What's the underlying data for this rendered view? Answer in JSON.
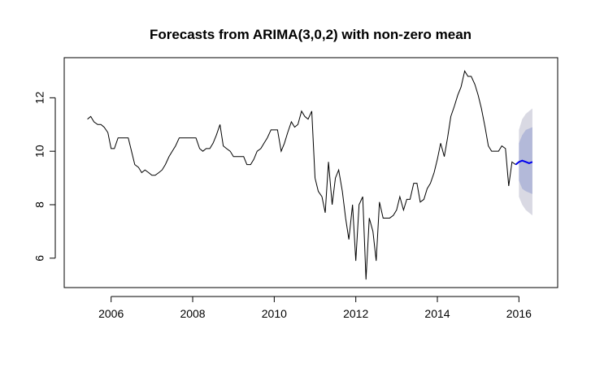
{
  "chart_data": {
    "type": "line",
    "title": "Forecasts from ARIMA(3,0,2) with non-zero mean",
    "xlabel": "",
    "ylabel": "",
    "xlim": [
      2004.85,
      2016.95
    ],
    "ylim": [
      4.9,
      13.5
    ],
    "x_ticks": [
      2006,
      2008,
      2010,
      2012,
      2014,
      2016
    ],
    "x_tick_labels": [
      "2006",
      "2008",
      "2010",
      "2012",
      "2014",
      "2016"
    ],
    "y_ticks": [
      6,
      8,
      10,
      12
    ],
    "y_tick_labels": [
      "6",
      "8",
      "10",
      "12"
    ],
    "grid": false,
    "legend": "none",
    "colors": {
      "series": "#000000",
      "forecast": "#0000ee",
      "band80": "#b3b9d9",
      "band95": "#d9d9e3"
    },
    "series": [
      {
        "role": "observed",
        "x": [
          2005.42,
          2005.5,
          2005.58,
          2005.67,
          2005.75,
          2005.83,
          2005.92,
          2006.0,
          2006.08,
          2006.17,
          2006.25,
          2006.33,
          2006.42,
          2006.5,
          2006.58,
          2006.67,
          2006.75,
          2006.83,
          2006.92,
          2007.0,
          2007.08,
          2007.17,
          2007.25,
          2007.33,
          2007.42,
          2007.5,
          2007.58,
          2007.67,
          2007.75,
          2007.83,
          2007.92,
          2008.0,
          2008.08,
          2008.17,
          2008.25,
          2008.33,
          2008.42,
          2008.5,
          2008.58,
          2008.67,
          2008.75,
          2008.83,
          2008.92,
          2009.0,
          2009.08,
          2009.17,
          2009.25,
          2009.33,
          2009.42,
          2009.5,
          2009.58,
          2009.67,
          2009.75,
          2009.83,
          2009.92,
          2010.0,
          2010.08,
          2010.17,
          2010.25,
          2010.33,
          2010.42,
          2010.5,
          2010.58,
          2010.67,
          2010.75,
          2010.83,
          2010.92,
          2011.0,
          2011.08,
          2011.17,
          2011.25,
          2011.33,
          2011.42,
          2011.5,
          2011.58,
          2011.67,
          2011.75,
          2011.83,
          2011.92,
          2012.0,
          2012.08,
          2012.17,
          2012.25,
          2012.33,
          2012.42,
          2012.5,
          2012.58,
          2012.67,
          2012.75,
          2012.83,
          2012.92,
          2013.0,
          2013.08,
          2013.17,
          2013.25,
          2013.33,
          2013.42,
          2013.5,
          2013.58,
          2013.67,
          2013.75,
          2013.83,
          2013.92,
          2014.0,
          2014.08,
          2014.17,
          2014.25,
          2014.33,
          2014.42,
          2014.5,
          2014.58,
          2014.67,
          2014.75,
          2014.83,
          2014.92,
          2015.0,
          2015.08,
          2015.17,
          2015.25,
          2015.33,
          2015.42,
          2015.5,
          2015.58,
          2015.67,
          2015.75,
          2015.83,
          2015.92
        ],
        "y": [
          11.2,
          11.3,
          11.1,
          11.0,
          11.0,
          10.9,
          10.7,
          10.1,
          10.1,
          10.5,
          10.5,
          10.5,
          10.5,
          10.0,
          9.5,
          9.4,
          9.2,
          9.3,
          9.2,
          9.1,
          9.1,
          9.2,
          9.3,
          9.5,
          9.8,
          10.0,
          10.2,
          10.5,
          10.5,
          10.5,
          10.5,
          10.5,
          10.5,
          10.1,
          10.0,
          10.1,
          10.1,
          10.3,
          10.6,
          11.0,
          10.2,
          10.1,
          10.0,
          9.8,
          9.8,
          9.8,
          9.8,
          9.5,
          9.5,
          9.7,
          10.0,
          10.1,
          10.3,
          10.5,
          10.8,
          10.8,
          10.8,
          10.0,
          10.3,
          10.7,
          11.1,
          10.9,
          11.0,
          11.5,
          11.3,
          11.2,
          11.5,
          9.0,
          8.5,
          8.3,
          7.7,
          9.6,
          8.0,
          9.0,
          9.3,
          8.5,
          7.5,
          6.7,
          8.0,
          5.9,
          8.0,
          8.3,
          5.2,
          7.5,
          7.0,
          5.9,
          8.1,
          7.5,
          7.5,
          7.5,
          7.6,
          7.8,
          8.3,
          7.8,
          8.2,
          8.2,
          8.8,
          8.8,
          8.1,
          8.2,
          8.6,
          8.8,
          9.2,
          9.7,
          10.3,
          9.8,
          10.5,
          11.3,
          11.7,
          12.1,
          12.4,
          13.0,
          12.8,
          12.8,
          12.5,
          12.1,
          11.6,
          10.9,
          10.2,
          10.0,
          10.0,
          10.0,
          10.2,
          10.1,
          8.7,
          9.6,
          9.5
        ]
      },
      {
        "role": "forecast",
        "x": [
          2015.92,
          2016.0,
          2016.08,
          2016.17,
          2016.25,
          2016.33
        ],
        "y": [
          9.5,
          9.6,
          9.65,
          9.6,
          9.55,
          9.6
        ]
      }
    ],
    "prediction_intervals": [
      {
        "level": "80%",
        "x": [
          2016.0,
          2016.08,
          2016.17,
          2016.25,
          2016.33
        ],
        "lower": [
          8.9,
          8.6,
          8.5,
          8.45,
          8.4
        ],
        "upper": [
          10.3,
          10.6,
          10.8,
          10.85,
          10.9
        ]
      },
      {
        "level": "95%",
        "x": [
          2016.0,
          2016.08,
          2016.17,
          2016.25,
          2016.33
        ],
        "lower": [
          8.3,
          8.0,
          7.8,
          7.7,
          7.6
        ],
        "upper": [
          10.8,
          11.2,
          11.4,
          11.5,
          11.6
        ]
      }
    ]
  }
}
